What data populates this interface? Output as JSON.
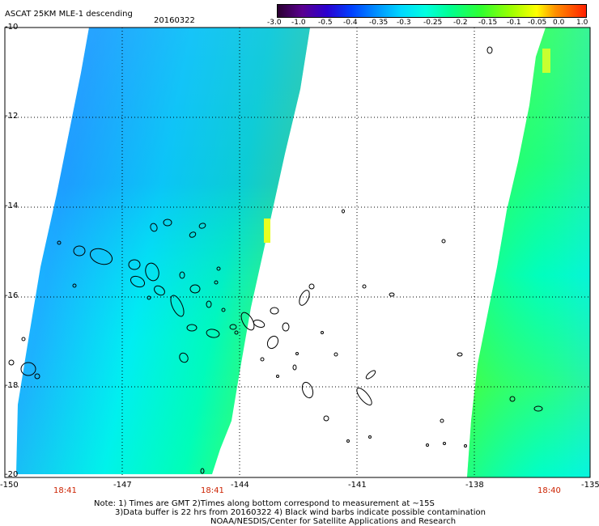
{
  "header": {
    "title": "ASCAT 25KM MLE-1 descending",
    "date": "20160322"
  },
  "colorbar": {
    "labels": [
      "-3.0",
      "-1.0",
      "-0.5",
      "-0.4",
      "-0.35",
      "-0.3",
      "-0.25",
      "-0.2",
      "-0.15",
      "-0.1",
      "-0.05",
      "0.0",
      "1.0"
    ],
    "colors": [
      "#2a0030",
      "#5a0090",
      "#2a00d0",
      "#0040ff",
      "#0090ff",
      "#00d8ff",
      "#00ffe0",
      "#00ff90",
      "#30ff30",
      "#a0ff00",
      "#ffff00",
      "#ff9000",
      "#ff2000"
    ]
  },
  "map": {
    "lat_labels": [
      "-10",
      "-12",
      "-14",
      "-16",
      "-18",
      "-20"
    ],
    "lon_labels": [
      "-150",
      "-147",
      "-144",
      "-141",
      "-138",
      "-135"
    ],
    "swath_times": [
      "18:41",
      "18:41",
      "18:40"
    ]
  },
  "footer": {
    "line1": "Note: 1) Times are GMT 2)Times along bottom correspond to measurement at ~15S",
    "line2": "3)Data buffer is 22 hrs from 20160322 4) Black wind barbs indicate possible contamination",
    "line3": "NOAA/NESDIS/Center for Satellite Applications and Research"
  }
}
